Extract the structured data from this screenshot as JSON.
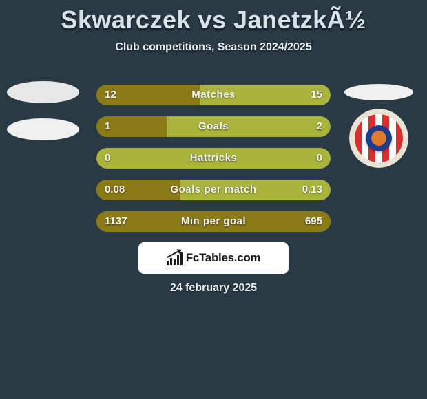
{
  "background_color": "#2a3a44",
  "title": "Skwarczek vs JanetzkÃ½",
  "title_color": "#d4e4ea",
  "subtitle": "Club competitions, Season 2024/2025",
  "text_shadow_color": "rgba(0,0,0,0.65)",
  "bars": {
    "track_color": "#aab43d",
    "fill_color": "#8b7a18",
    "text_color": "#f2f5f6",
    "rows": [
      {
        "label": "Matches",
        "left_val": "12",
        "right_val": "15",
        "left_pct": 44
      },
      {
        "label": "Goals",
        "left_val": "1",
        "right_val": "2",
        "left_pct": 30
      },
      {
        "label": "Hattricks",
        "left_val": "0",
        "right_val": "0",
        "left_pct": 0
      },
      {
        "label": "Goals per match",
        "left_val": "0.08",
        "right_val": "0.13",
        "left_pct": 36
      },
      {
        "label": "Min per goal",
        "left_val": "1137",
        "right_val": "695",
        "left_pct": 100
      }
    ]
  },
  "left_badges": {
    "ellipse1_color": "#e7e7e7",
    "ellipse2_color": "#efefef"
  },
  "right_badges": {
    "small_ellipse_color": "#f0f0f0",
    "club": {
      "ring_color": "#e9e3d6",
      "stripes": [
        "#d92f2f",
        "#ffffff",
        "#d92f2f",
        "#ffffff",
        "#d92f2f",
        "#ffffff",
        "#d92f2f"
      ],
      "swirl_outer": "#1f3b8a",
      "swirl_inner": "#de7a2a"
    }
  },
  "watermark": {
    "bg": "#ffffff",
    "text": "FcTables.com",
    "icon_color": "#1a1a1a"
  },
  "footer_date": "24 february 2025"
}
